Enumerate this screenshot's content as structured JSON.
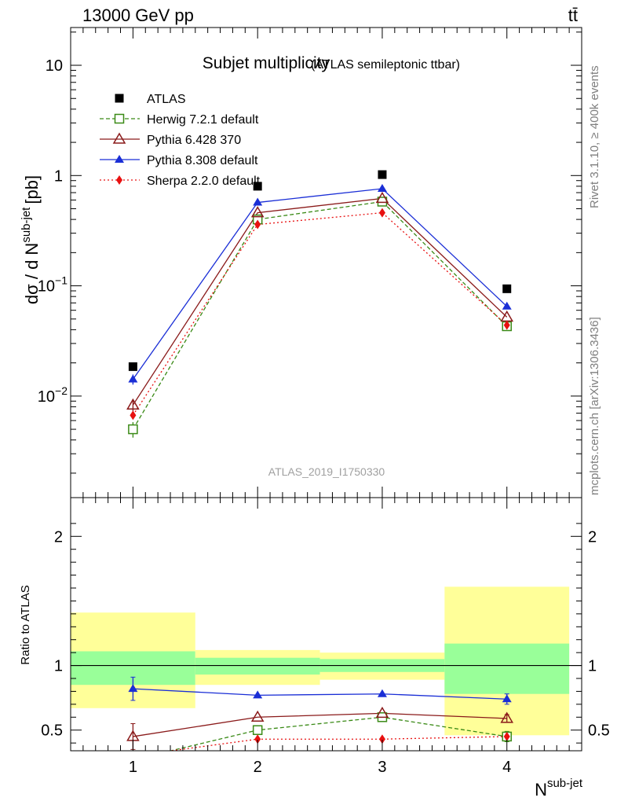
{
  "header": {
    "energy_label": "13000 GeV pp",
    "process_label": "tt̄"
  },
  "side_labels": {
    "rivet": "Rivet 3.1.10, ≥ 400k events",
    "mcplots": "mcplots.cern.ch [arXiv:1306.3436]"
  },
  "watermark": "ATLAS_2019_I1750330",
  "chart_data": [
    {
      "type": "line",
      "title": "Subjet multiplicity",
      "subtitle": "(ATLAS semileptonic ttbar)",
      "ylabel": "dσ / d N",
      "ylabel_sup": "sub-jet",
      "ylabel_unit": "[pb]",
      "yscale": "log",
      "ylim": [
        0.0012,
        22
      ],
      "xlim": [
        0.5,
        4.6
      ],
      "x": [
        1,
        2,
        3,
        4
      ],
      "yticks": [
        {
          "value": 10,
          "label": "10"
        },
        {
          "value": 1,
          "label": "1"
        },
        {
          "value": 0.1,
          "label": "10",
          "sup": "−1"
        },
        {
          "value": 0.01,
          "label": "10",
          "sup": "−2"
        }
      ],
      "legend_position": "top-left",
      "series": [
        {
          "name": "ATLAS",
          "color": "#000000",
          "marker": "square-filled",
          "line": "none",
          "values": [
            0.0185,
            0.8,
            1.02,
            0.094
          ]
        },
        {
          "name": "Herwig 7.2.1 default",
          "color": "#3a8a16",
          "marker": "square-open",
          "line": "dashed",
          "values": [
            0.005,
            0.4,
            0.58,
            0.043
          ],
          "err": [
            0.0008,
            0,
            0,
            0
          ]
        },
        {
          "name": "Pythia 6.428 370",
          "color": "#8a1a1a",
          "marker": "triangle-open",
          "line": "solid",
          "values": [
            0.0083,
            0.46,
            0.62,
            0.052
          ],
          "err": [
            0.001,
            0,
            0,
            0
          ]
        },
        {
          "name": "Pythia 8.308 default",
          "color": "#1a2ed6",
          "marker": "triangle-filled",
          "line": "solid",
          "values": [
            0.0142,
            0.57,
            0.76,
            0.065
          ],
          "err": [
            0.0015,
            0,
            0,
            0
          ]
        },
        {
          "name": "Sherpa 2.2.0 default",
          "color": "#e81010",
          "marker": "diamond-filled",
          "line": "dotted",
          "values": [
            0.0067,
            0.36,
            0.46,
            0.044
          ],
          "err": [
            0,
            0,
            0,
            0
          ]
        }
      ]
    },
    {
      "type": "line",
      "ylabel": "Ratio to ATLAS",
      "xlabel": "N",
      "xlabel_sup": "sub-jet",
      "ylim": [
        0.34,
        2.3
      ],
      "xlim": [
        0.5,
        4.6
      ],
      "xticks": [
        1,
        2,
        3,
        4
      ],
      "yticks": [
        {
          "value": 2,
          "label": "2"
        },
        {
          "value": 1,
          "label": "1"
        },
        {
          "value": 0.5,
          "label": "0.5"
        }
      ],
      "bands": [
        {
          "xlo": 0.5,
          "xhi": 1.5,
          "yellow": [
            0.67,
            1.41
          ],
          "green": [
            0.85,
            1.11
          ]
        },
        {
          "xlo": 1.5,
          "xhi": 2.5,
          "yellow": [
            0.85,
            1.12
          ],
          "green": [
            0.93,
            1.06
          ]
        },
        {
          "xlo": 2.5,
          "xhi": 3.5,
          "yellow": [
            0.89,
            1.1
          ],
          "green": [
            0.95,
            1.05
          ]
        },
        {
          "xlo": 3.5,
          "xhi": 4.5,
          "yellow": [
            0.46,
            1.61
          ],
          "green": [
            0.78,
            1.17
          ]
        }
      ],
      "reference": 1,
      "series": [
        {
          "name": "Herwig 7.2.1 default",
          "color": "#3a8a16",
          "marker": "square-open",
          "line": "dashed",
          "values": [
            0.27,
            0.5,
            0.6,
            0.45
          ],
          "err": [
            0,
            0,
            0,
            0.04
          ]
        },
        {
          "name": "Pythia 6.428 370",
          "color": "#8a1a1a",
          "marker": "triangle-open",
          "line": "solid",
          "values": [
            0.45,
            0.6,
            0.63,
            0.59
          ],
          "err": [
            0.1,
            0,
            0,
            0.03
          ]
        },
        {
          "name": "Pythia 8.308 default",
          "color": "#1a2ed6",
          "marker": "triangle-filled",
          "line": "solid",
          "values": [
            0.82,
            0.77,
            0.78,
            0.74
          ],
          "err": [
            0.09,
            0,
            0,
            0.04
          ]
        },
        {
          "name": "Sherpa 2.2.0 default",
          "color": "#e81010",
          "marker": "diamond-filled",
          "line": "dotted",
          "values": [
            0.3,
            0.43,
            0.43,
            0.45
          ],
          "err": [
            0,
            0,
            0,
            0.03
          ]
        }
      ]
    }
  ]
}
